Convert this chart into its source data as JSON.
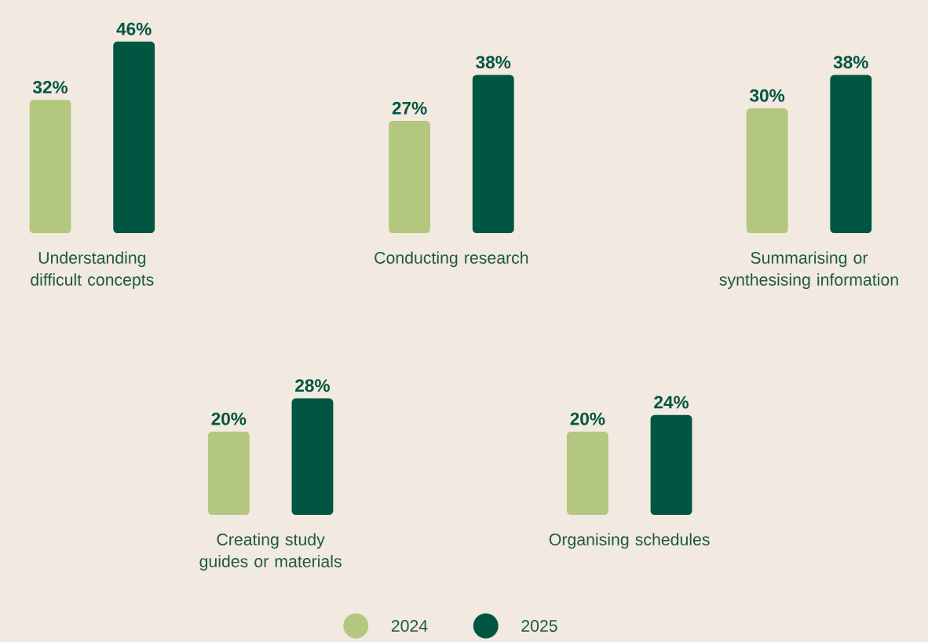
{
  "chart_data": [
    {
      "type": "bar",
      "categories": [
        "Understanding difficult concepts"
      ],
      "series": [
        {
          "color": "#b3c77f",
          "values": [
            32
          ],
          "value_labels": [
            "32%"
          ]
        },
        {
          "color": "#005640",
          "values": [
            46
          ],
          "value_labels": [
            "46%"
          ]
        }
      ]
    },
    {
      "type": "bar",
      "categories": [
        "Conducting research"
      ],
      "series": [
        {
          "color": "#b3c77f",
          "values": [
            27
          ],
          "value_labels": [
            "27%"
          ]
        },
        {
          "color": "#005640",
          "values": [
            38
          ],
          "value_labels": [
            "38%"
          ]
        }
      ]
    },
    {
      "type": "bar",
      "categories": [
        "Summarising or synthesising information"
      ],
      "series": [
        {
          "color": "#b3c77f",
          "values": [
            30
          ],
          "value_labels": [
            "30%"
          ]
        },
        {
          "color": "#005640",
          "values": [
            38
          ],
          "value_labels": [
            "38%"
          ]
        }
      ]
    },
    {
      "type": "bar",
      "categories": [
        "Creating study guides or materials"
      ],
      "series": [
        {
          "color": "#b3c77f",
          "values": [
            20
          ],
          "value_labels": [
            "20%"
          ]
        },
        {
          "color": "#005640",
          "values": [
            28
          ],
          "value_labels": [
            "28%"
          ]
        }
      ]
    },
    {
      "type": "bar",
      "categories": [
        "Organising schedules"
      ],
      "legend": "bottom",
      "series": [
        {
          "name": "2024",
          "color": "#b3c77f",
          "values": [
            20
          ],
          "value_labels": [
            "20%"
          ]
        },
        {
          "name": "2025",
          "color": "#005640",
          "values": [
            24
          ],
          "value_labels": [
            "24%"
          ]
        }
      ]
    }
  ]
}
